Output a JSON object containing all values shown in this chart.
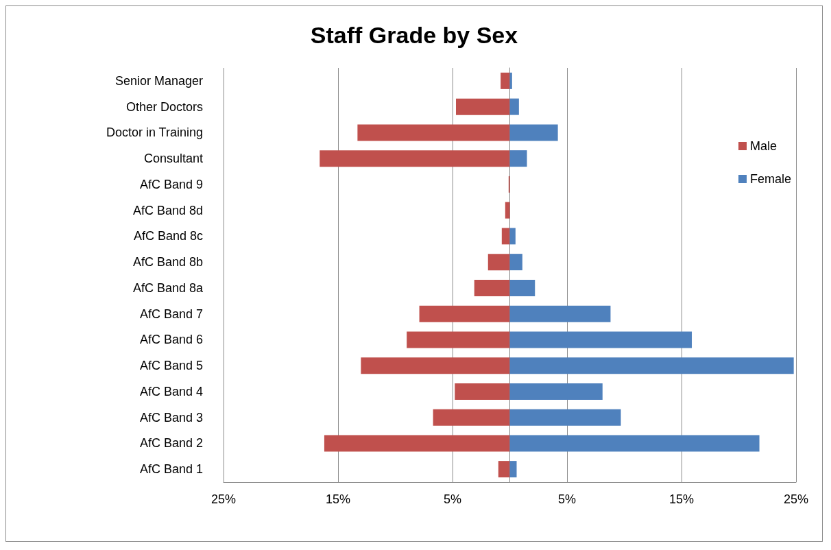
{
  "chart_data": {
    "type": "bar",
    "title": "Staff Grade by Sex",
    "orientation": "horizontal",
    "stacked": true,
    "categories": [
      "Senior Manager",
      "Other Doctors",
      "Doctor in Training",
      "Consultant",
      "AfC Band 9",
      "AfC Band 8d",
      "AfC Band 8c",
      "AfC Band 8b",
      "AfC Band 8a",
      "AfC Band 7",
      "AfC Band 6",
      "AfC Band 5",
      "AfC Band 4",
      "AfC Band 3",
      "AfC Band 2",
      "AfC Band 1"
    ],
    "series": [
      {
        "name": "Male",
        "color": "#c0504d",
        "values": [
          -0.8,
          -4.7,
          -13.3,
          -16.6,
          -0.1,
          -0.4,
          -0.7,
          -1.9,
          -3.1,
          -7.9,
          -9.0,
          -13.0,
          -4.8,
          -6.7,
          -16.2,
          -1.0
        ]
      },
      {
        "name": "Female",
        "color": "#4f81bd",
        "values": [
          0.2,
          0.8,
          4.2,
          1.5,
          0.0,
          0.0,
          0.5,
          1.1,
          2.2,
          8.8,
          15.9,
          24.8,
          8.1,
          9.7,
          21.8,
          0.6
        ]
      }
    ],
    "xlim": [
      -25,
      25
    ],
    "xticks": [
      {
        "value": -25,
        "label": "25%"
      },
      {
        "value": -15,
        "label": "15%"
      },
      {
        "value": -5,
        "label": "5%"
      },
      {
        "value": 5,
        "label": "5%"
      },
      {
        "value": 15,
        "label": "15%"
      },
      {
        "value": 25,
        "label": "25%"
      }
    ],
    "grid": "x",
    "legend": "right"
  }
}
